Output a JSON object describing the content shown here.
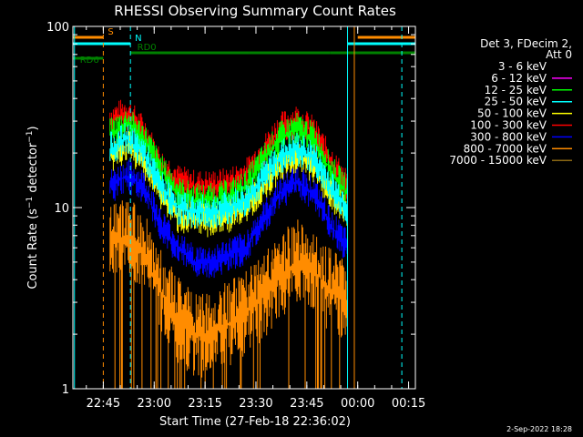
{
  "chart_data": {
    "type": "line",
    "title": "RHESSI Observing Summary Count Rates",
    "xlabel": "Start Time (27-Feb-18 22:36:02)",
    "ylabel_main": "Count Rate (s",
    "ylabel_sup1": "−1",
    "ylabel_mid": " detector",
    "ylabel_sup2": "−1",
    "ylabel_end": ")",
    "y_scale": "log",
    "ylim": [
      1,
      100
    ],
    "xlim": [
      "22:36:02",
      "00:17"
    ],
    "x_ticks": [
      "22:45",
      "23:00",
      "23:15",
      "23:30",
      "23:45",
      "00:00",
      "00:15"
    ],
    "y_ticks": [
      "1",
      "10",
      "100"
    ],
    "grid": false,
    "legend_position": "right",
    "legend_header": [
      "Det 3, FDecim 2,",
      "Att 0"
    ],
    "series": [
      {
        "name": "3 - 6 keV",
        "color": "#000000"
      },
      {
        "name": "6 - 12 keV",
        "color": "#ff00ff"
      },
      {
        "name": "12 - 25 keV",
        "color": "#00ff00"
      },
      {
        "name": "25 - 50 keV",
        "color": "#00ffff"
      },
      {
        "name": "50 - 100 keV",
        "color": "#ffff00"
      },
      {
        "name": "100 - 300 keV",
        "color": "#ff0000"
      },
      {
        "name": "300 - 800 keV",
        "color": "#0000ff"
      },
      {
        "name": "800 - 7000 keV",
        "color": "#ff8c00"
      },
      {
        "name": "7000 - 15000 keV",
        "color": "#8b6914"
      }
    ],
    "profile_times": [
      "22:36",
      "22:42",
      "22:47",
      "22:52",
      "22:57",
      "23:02",
      "23:07",
      "23:12",
      "23:17",
      "23:22",
      "23:27",
      "23:32",
      "23:37",
      "23:42",
      "23:47",
      "23:52",
      "23:57",
      "23:59"
    ],
    "profiles": [
      {
        "series": "100 - 300 keV",
        "values": [
          null,
          null,
          30,
          33,
          26,
          17,
          14,
          13,
          13,
          13.5,
          15,
          20,
          27,
          30,
          26,
          18,
          13,
          null
        ]
      },
      {
        "series": "12 - 25 keV",
        "values": [
          null,
          null,
          25,
          29,
          24,
          16,
          12,
          11,
          11,
          11.5,
          13,
          18,
          24,
          27,
          24,
          16,
          12,
          null
        ]
      },
      {
        "series": "50 - 100 keV",
        "values": [
          null,
          null,
          19,
          22,
          18,
          12,
          9,
          8.5,
          8.5,
          9,
          10,
          13,
          17,
          19,
          17,
          12,
          9,
          null
        ]
      },
      {
        "series": "25 - 50 keV",
        "values": [
          null,
          null,
          21,
          24,
          20,
          13,
          10,
          9.5,
          9.5,
          10,
          11,
          14.5,
          19,
          21,
          19,
          13,
          10,
          null
        ]
      },
      {
        "series": "300 - 800 keV",
        "values": [
          null,
          null,
          13,
          15,
          13,
          8,
          6,
          5,
          5,
          5.5,
          6,
          8.5,
          12,
          14,
          12,
          8,
          6,
          null
        ]
      },
      {
        "series": "800 - 7000 keV",
        "values": [
          null,
          null,
          6.5,
          6.8,
          5.5,
          3.4,
          2.4,
          2.0,
          2.0,
          2.3,
          2.6,
          3.2,
          4.2,
          5,
          4.5,
          3.5,
          3,
          null
        ]
      }
    ],
    "state_bars": [
      {
        "label": "S",
        "color": "#ff8c00",
        "segments": [
          [
            "22:36",
            "22:45"
          ],
          [
            "00:00",
            "00:17"
          ]
        ]
      },
      {
        "label": "N",
        "color": "#00ffff",
        "segments": [
          [
            "22:36",
            "22:53"
          ],
          [
            "23:57",
            "00:17"
          ]
        ]
      },
      {
        "label": "RD0",
        "color": "#008000",
        "segments": [
          [
            "22:53",
            "23:01"
          ],
          [
            "23:01",
            "23:28"
          ],
          [
            "23:28",
            "23:52"
          ],
          [
            "23:52",
            "00:17"
          ]
        ]
      },
      {
        "label": "RD6",
        "color": "#008000",
        "segments": [
          [
            "22:36",
            "22:45"
          ]
        ]
      }
    ],
    "vertical_markers": [
      {
        "time": "22:36:30",
        "color": "#00ffff",
        "style": "solid"
      },
      {
        "time": "22:45",
        "color": "#ff8c00",
        "style": "dashed"
      },
      {
        "time": "22:53",
        "color": "#00ffff",
        "style": "dashed"
      },
      {
        "time": "23:57",
        "color": "#00ffff",
        "style": "solid"
      },
      {
        "time": "23:59",
        "color": "#ff8c00",
        "style": "solid"
      },
      {
        "time": "00:13",
        "color": "#00ffff",
        "style": "dashed"
      }
    ]
  },
  "footer": {
    "date": "2-Sep-2022 18:28"
  }
}
